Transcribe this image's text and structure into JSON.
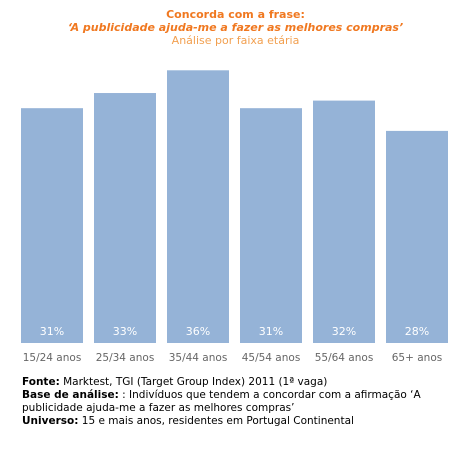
{
  "title": {
    "line1": "Concorda com a frase:",
    "line2": "‘A publicidade ajuda-me a fazer as melhores compras’",
    "subtitle": "Análise por faixa etária"
  },
  "colors": {
    "bar": "#95b3d7",
    "title": "#f07820",
    "subtitle": "#f2a050"
  },
  "chart_data": {
    "type": "bar",
    "title": "Concorda com a frase: ‘A publicidade ajuda-me a fazer as melhores compras’",
    "subtitle": "Análise por faixa etária",
    "categories": [
      "15/24 anos",
      "25/34 anos",
      "35/44 anos",
      "45/54 anos",
      "55/64 anos",
      "65+ anos"
    ],
    "values": [
      31,
      33,
      36,
      31,
      32,
      28
    ],
    "data_labels": [
      "31%",
      "33%",
      "36%",
      "31%",
      "32%",
      "28%"
    ],
    "unit": "%",
    "ylim": [
      0,
      40
    ],
    "grid": false,
    "legend": "none"
  },
  "footnotes": {
    "source_label": "Fonte:",
    "source_text": " Marktest, TGI (Target Group Index) 2011 (1ª vaga)",
    "base_label": "Base de análise:",
    "base_text": "  : Indivíduos que tendem a concordar com a afirmação ‘A publicidade ajuda-me a fazer as melhores compras’",
    "universe_label": "Universo:",
    "universe_text": " 15 e mais anos, residentes em Portugal Continental"
  }
}
